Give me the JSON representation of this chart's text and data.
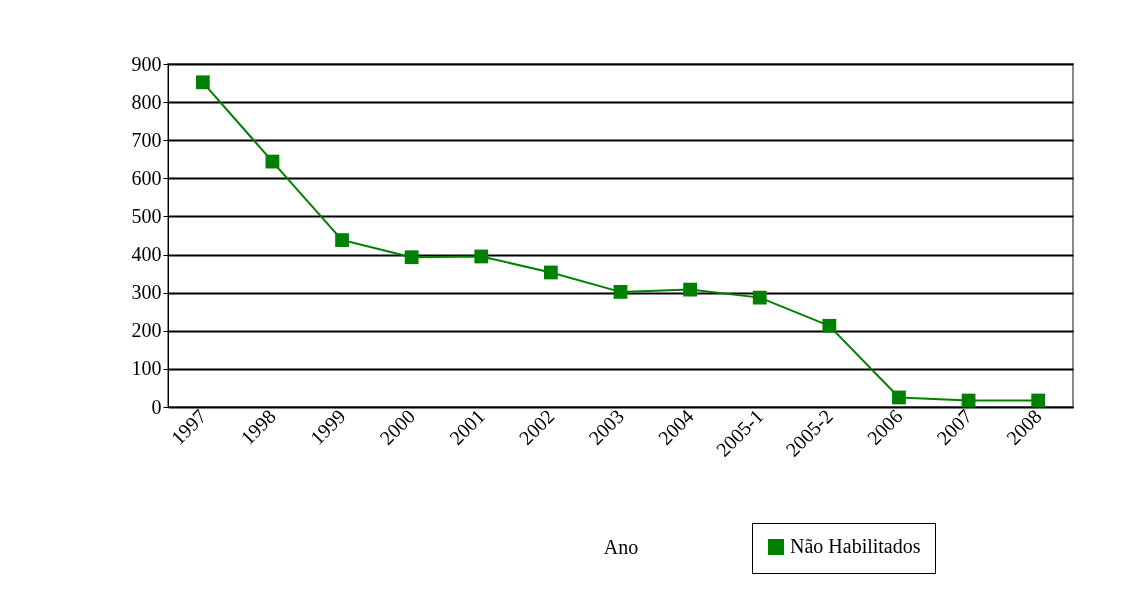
{
  "chart_data": {
    "type": "line",
    "xlabel": "Ano",
    "categories": [
      "1997",
      "1998",
      "1999",
      "2000",
      "2001",
      "2002",
      "2003",
      "2004",
      "2005-1",
      "2005-2",
      "2006",
      "2007",
      "2008"
    ],
    "series": [
      {
        "name": "Não Habilitados",
        "color": "#008000",
        "values": [
          852,
          644,
          438,
          393,
          395,
          353,
          302,
          308,
          287,
          213,
          25,
          17,
          17
        ]
      }
    ],
    "ylim": [
      0,
      900
    ],
    "yticks": [
      0,
      100,
      200,
      300,
      400,
      500,
      600,
      700,
      800,
      900
    ],
    "grid": "y",
    "legend": "bottom right",
    "marker": "square",
    "line_style": "solid"
  }
}
